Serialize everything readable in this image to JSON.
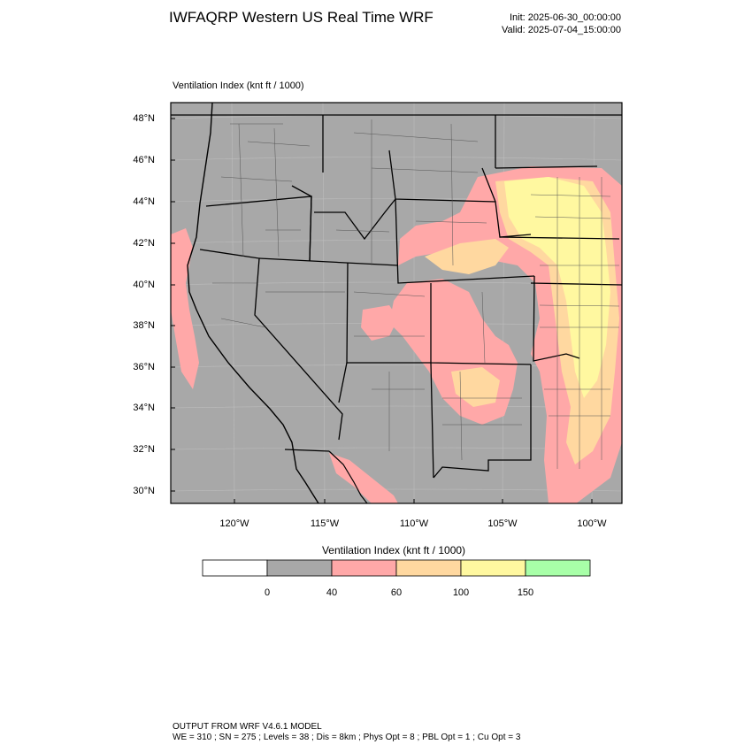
{
  "header": {
    "title": "IWFAQRP Western US Real Time WRF",
    "init": "Init: 2025-06-30_00:00:00",
    "valid": "Valid: 2025-07-04_15:00:00"
  },
  "map": {
    "field_label": "Ventilation Index   (knt ft / 1000)",
    "lat_labels": [
      "48°N",
      "46°N",
      "44°N",
      "42°N",
      "40°N",
      "38°N",
      "36°N",
      "34°N",
      "32°N",
      "30°N"
    ],
    "lon_labels": [
      "120°W",
      "115°W",
      "110°W",
      "105°W",
      "100°W"
    ],
    "colors": {
      "below_0": "#ffffff",
      "0_40": "#a8a8a8",
      "40_60": "#ffa8a8",
      "60_100": "#ffd8a0",
      "100_150": "#fff8a0",
      "above_150": "#a8ffa8"
    }
  },
  "colorbar": {
    "title": "Ventilation Index   (knt ft / 1000)",
    "tick_labels": [
      "0",
      "40",
      "60",
      "100",
      "150"
    ],
    "bins": [
      {
        "color": "#ffffff"
      },
      {
        "color": "#a8a8a8"
      },
      {
        "color": "#ffa8a8"
      },
      {
        "color": "#ffd8a0"
      },
      {
        "color": "#fff8a0"
      },
      {
        "color": "#a8ffa8"
      }
    ]
  },
  "footer": {
    "line1": "OUTPUT FROM WRF V4.6.1 MODEL",
    "line2": "WE = 310 ; SN = 275 ; Levels = 38 ; Dis = 8km ; Phys Opt = 8 ; PBL Opt = 1 ; Cu Opt = 3"
  }
}
